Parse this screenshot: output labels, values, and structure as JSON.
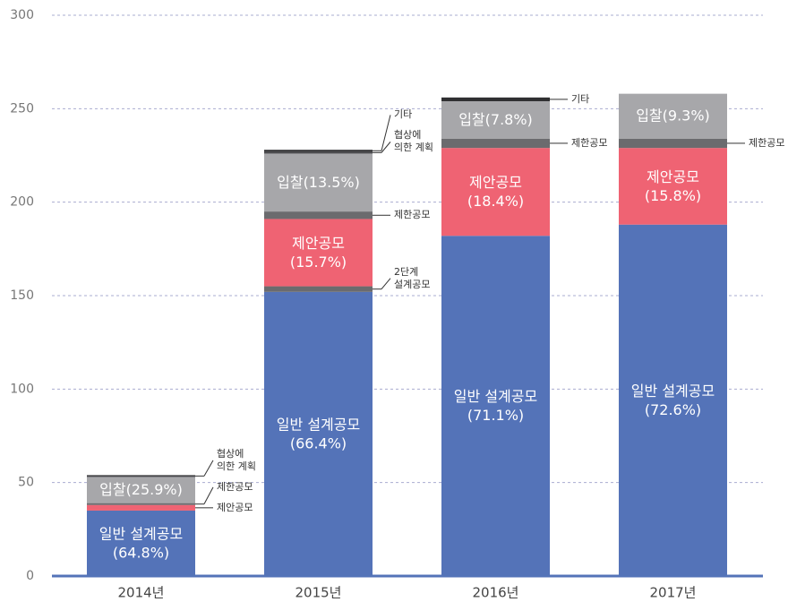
{
  "chart_data": {
    "type": "stacked-bar",
    "categories": [
      "2014년",
      "2015년",
      "2016년",
      "2017년"
    ],
    "ylim": [
      0,
      300
    ],
    "yticks": [
      0,
      50,
      100,
      150,
      200,
      250,
      300
    ],
    "grid": true,
    "series": [
      {
        "name": "일반 설계공모",
        "color": "#5473b8",
        "values": [
          35,
          152,
          182,
          188
        ],
        "share_labels": [
          "(64.8%)",
          "(66.4%)",
          "(71.1%)",
          "(72.6%)"
        ]
      },
      {
        "name": "2단계\n설계공모",
        "color": "#6b6b6e",
        "values": [
          null,
          3,
          null,
          null
        ],
        "share_labels": [
          null,
          null,
          null,
          null
        ]
      },
      {
        "name": "제안공모",
        "color": "#ef6373",
        "values": [
          3,
          36,
          47,
          41
        ],
        "share_labels": [
          null,
          "(15.7%)",
          "(18.4%)",
          "(15.8%)"
        ]
      },
      {
        "name": "제한공모",
        "color": "#6b6b6e",
        "values": [
          1,
          4,
          5,
          5
        ],
        "share_labels": [
          null,
          null,
          null,
          null
        ]
      },
      {
        "name": "입찰",
        "color": "#a7a7aa",
        "values": [
          14,
          31,
          20,
          24
        ],
        "share_labels": [
          "(25.9%)",
          "(13.5%)",
          "(7.8%)",
          "(9.3%)"
        ]
      },
      {
        "name": "협상에\n의한 계획",
        "color": "#48484b",
        "values": [
          1,
          1,
          null,
          null
        ],
        "share_labels": [
          null,
          null,
          null,
          null
        ]
      },
      {
        "name": "기타",
        "color": "#2f2f31",
        "values": [
          null,
          1,
          2,
          null
        ],
        "share_labels": [
          null,
          null,
          null,
          null
        ]
      }
    ]
  }
}
